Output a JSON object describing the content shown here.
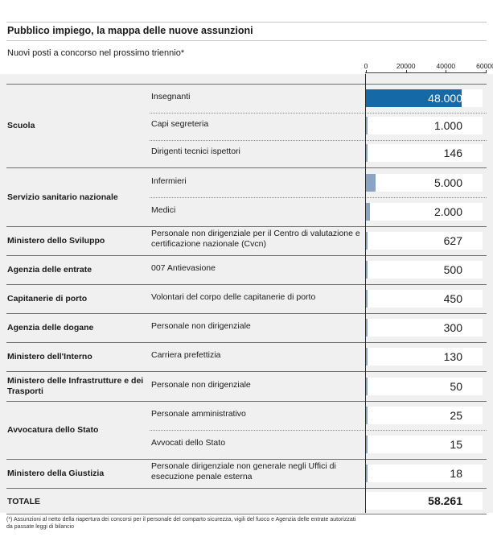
{
  "title": "Pubblico impiego, la mappa delle nuove assunzioni",
  "subtitle": "Nuovi posti a concorso nel prossimo triennio*",
  "chart_data": {
    "type": "bar",
    "orientation": "horizontal",
    "xlim": [
      0,
      60000
    ],
    "x_ticks": [
      "0",
      "20000",
      "40000",
      "60000"
    ],
    "rows": [
      {
        "category": "Scuola",
        "item": "Insegnanti",
        "value": 48000,
        "label": "48.000"
      },
      {
        "category": "",
        "item": "Capi segreteria",
        "value": 1000,
        "label": "1.000"
      },
      {
        "category": "",
        "item": "Dirigenti tecnici ispettori",
        "value": 146,
        "label": "146"
      },
      {
        "category": "Servizio sanitario nazionale",
        "item": "Infermieri",
        "value": 5000,
        "label": "5.000"
      },
      {
        "category": "",
        "item": "Medici",
        "value": 2000,
        "label": "2.000"
      },
      {
        "category": "Ministero dello Sviluppo",
        "item": "Personale  non dirigenziale per il Centro di valutazione e certificazione nazionale (Cvcn)",
        "value": 627,
        "label": "627"
      },
      {
        "category": "Agenzia delle entrate",
        "item": "007 Antievasione",
        "value": 500,
        "label": "500"
      },
      {
        "category": "Capitanerie di porto",
        "item": "Volontari del corpo delle capitanerie di porto",
        "value": 450,
        "label": "450"
      },
      {
        "category": "Agenzia delle dogane",
        "item": "Personale non dirigenziale",
        "value": 300,
        "label": "300"
      },
      {
        "category": "Ministero dell'Interno",
        "item": "Carriera prefettizia",
        "value": 130,
        "label": "130"
      },
      {
        "category": "Ministero delle Infrastrutture e dei Trasporti",
        "item": "Personale non dirigenziale",
        "value": 50,
        "label": "50"
      },
      {
        "category": "Avvocatura dello Stato",
        "item": "Personale amministrativo",
        "value": 25,
        "label": "25"
      },
      {
        "category": "",
        "item": "Avvocati dello Stato",
        "value": 15,
        "label": "15"
      },
      {
        "category": "Ministero della Giustizia",
        "item": "Personale dirigenziale non generale negli Uffici di esecuzione penale esterna",
        "value": 18,
        "label": "18"
      }
    ],
    "total_label": "TOTALE",
    "total_value": "58.261"
  },
  "footnote": "(*) Assunzioni al netto della riapertura dei concorsi per il personale del comparto sicurezza, vigili del fuoco e Agenzia delle entrate autorizzati da passate leggi di bilancio",
  "colors": {
    "highlight_bar": "#1669a7",
    "bar": "#8aa4c2",
    "panel": "#f0f0f0"
  }
}
